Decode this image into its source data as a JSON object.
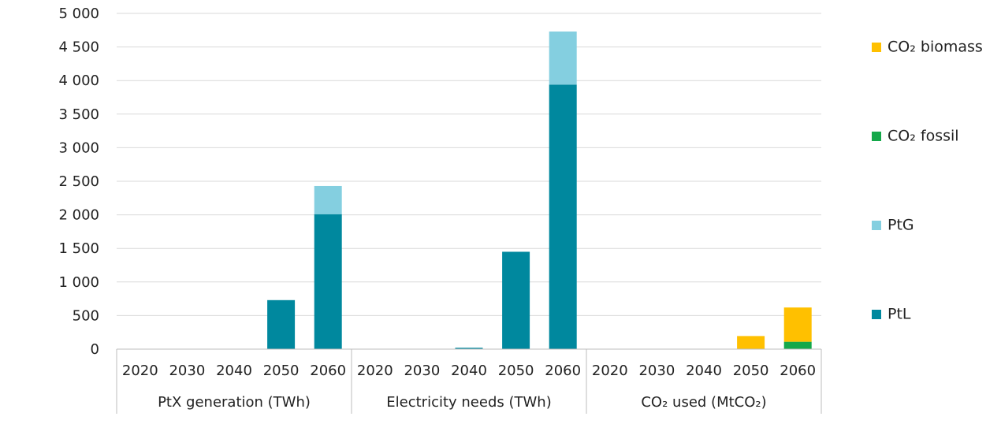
{
  "chart_data": {
    "type": "bar",
    "stacked": true,
    "ylim": [
      0,
      5000
    ],
    "y_ticks": [
      "0",
      "500",
      "1 000",
      "1 500",
      "2 000",
      "2 500",
      "3 000",
      "3 500",
      "4 000",
      "4 500",
      "5 000"
    ],
    "y_tick_values": [
      0,
      500,
      1000,
      1500,
      2000,
      2500,
      3000,
      3500,
      4000,
      4500,
      5000
    ],
    "groups": [
      {
        "label": "PtX generation (TWh)",
        "categories": [
          "2020",
          "2030",
          "2040",
          "2050",
          "2060"
        ]
      },
      {
        "label": "Electricity needs (TWh)",
        "categories": [
          "2020",
          "2030",
          "2040",
          "2050",
          "2060"
        ]
      },
      {
        "label": "CO₂ used (MtCO₂)",
        "categories": [
          "2020",
          "2030",
          "2040",
          "2050",
          "2060"
        ]
      }
    ],
    "series": [
      {
        "name": "PtL",
        "color": "#00889e",
        "values": [
          0,
          0,
          0,
          730,
          2010,
          0,
          0,
          20,
          1450,
          3940,
          0,
          0,
          0,
          0,
          0
        ]
      },
      {
        "name": "PtG",
        "color": "#84cfe0",
        "values": [
          0,
          0,
          0,
          0,
          420,
          0,
          0,
          0,
          0,
          790,
          0,
          0,
          0,
          0,
          0
        ]
      },
      {
        "name": "CO₂ fossil",
        "color": "#14a84a",
        "values": [
          0,
          0,
          0,
          0,
          0,
          0,
          0,
          0,
          0,
          0,
          0,
          0,
          0,
          0,
          110
        ]
      },
      {
        "name": "CO₂ biomass",
        "color": "#ffc000",
        "values": [
          0,
          0,
          0,
          0,
          0,
          0,
          0,
          0,
          0,
          0,
          0,
          0,
          0,
          195,
          510
        ]
      }
    ],
    "legend_order": [
      "CO₂ biomass",
      "CO₂ fossil",
      "PtG",
      "PtL"
    ],
    "legend_position": "right",
    "grid": true
  }
}
